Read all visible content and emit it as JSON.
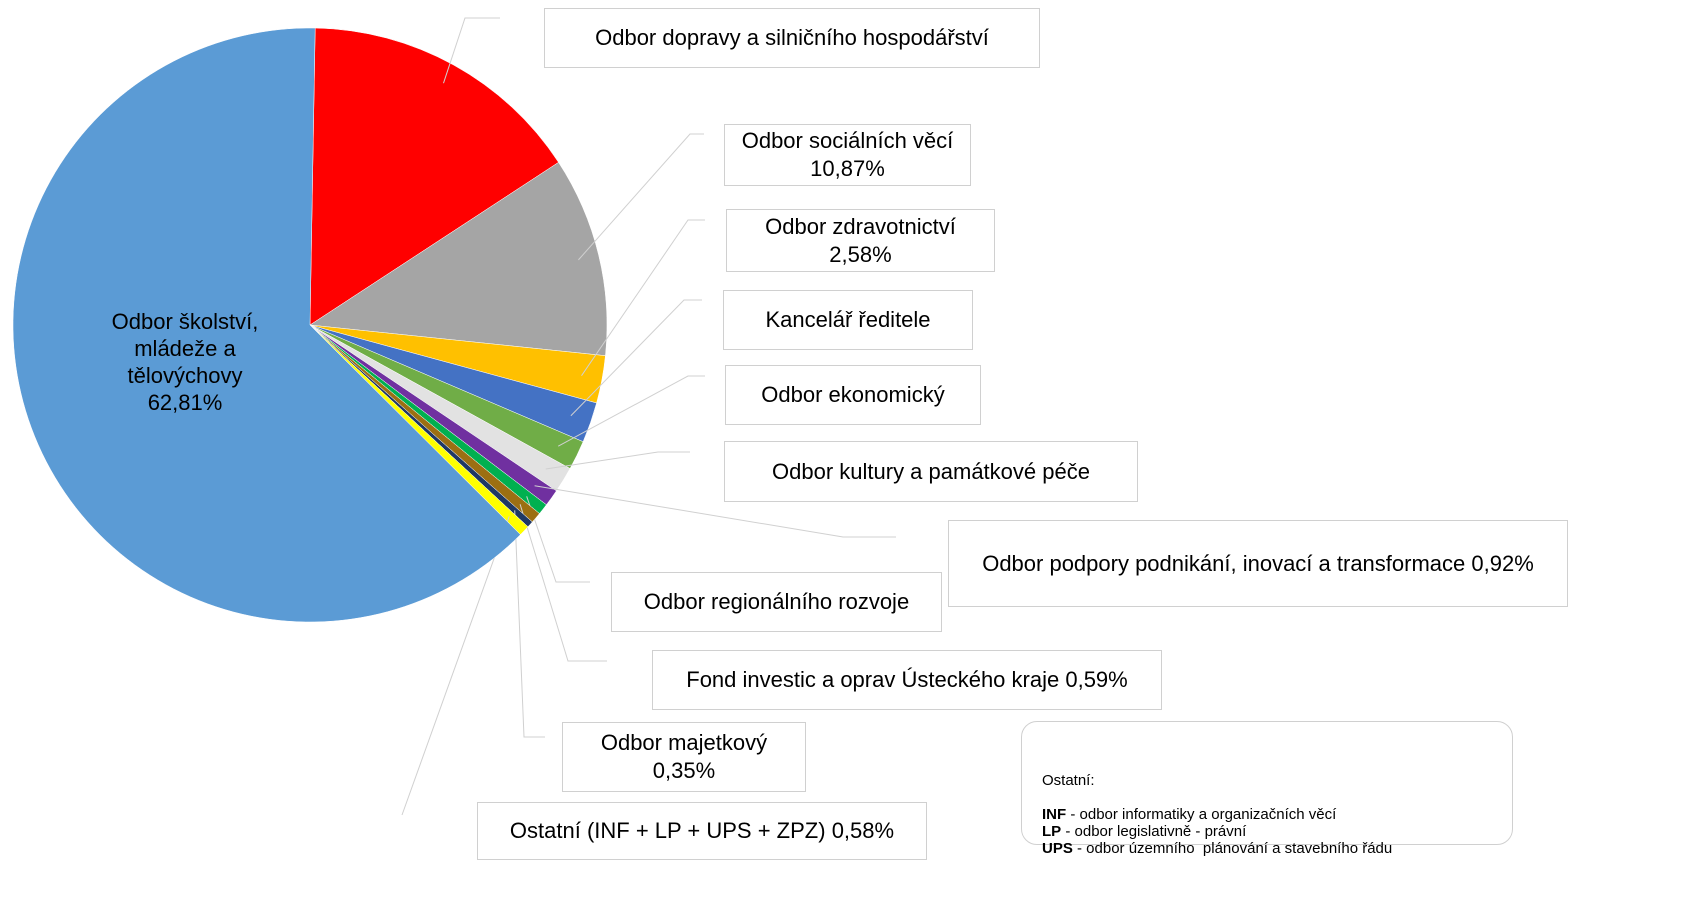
{
  "chart_data": {
    "type": "pie",
    "categories": [
      "Odbor dopravy a silničního hospodářství",
      "Odbor sociálních věcí",
      "Odbor zdravotnictví",
      "Kancelář ředitele",
      "Odbor ekonomický",
      "Odbor kultury a památkové péče",
      "Odbor podpory podnikání, inovací a transformace",
      "Odbor regionálního rozvoje",
      "Fond investic a oprav Ústeckého kraje",
      "Odbor majetkový",
      "Ostatní (INF + LP + UPS + ZPZ)",
      "Odbor školství, mládeže a tělovýchovy"
    ],
    "values": [
      15.5,
      10.87,
      2.58,
      2.2,
      1.6,
      1.4,
      0.92,
      0.6,
      0.59,
      0.35,
      0.58,
      62.81
    ],
    "value_labels": [
      null,
      "10,87%",
      "2,58%",
      null,
      null,
      null,
      "0,92%",
      null,
      "0,59%",
      "0,35%",
      "0,58%",
      "62,81%"
    ],
    "colors": [
      "#ff0000",
      "#a5a5a5",
      "#ffc000",
      "#4472c4",
      "#70ad47",
      "#e2e2e2",
      "#7030a0",
      "#00b050",
      "#9c6f12",
      "#203864",
      "#ffff00",
      "#5b9bd5"
    ],
    "note": {
      "title": "Ostatní:",
      "items": [
        {
          "abbr": "INF",
          "text": "- odbor informatiky a organizačních věcí"
        },
        {
          "abbr": "LP",
          "text": "- odbor legislativně - právní"
        },
        {
          "abbr": "UPS",
          "text": "- odbor územního  plánování a stavebního řádu"
        }
      ]
    }
  }
}
